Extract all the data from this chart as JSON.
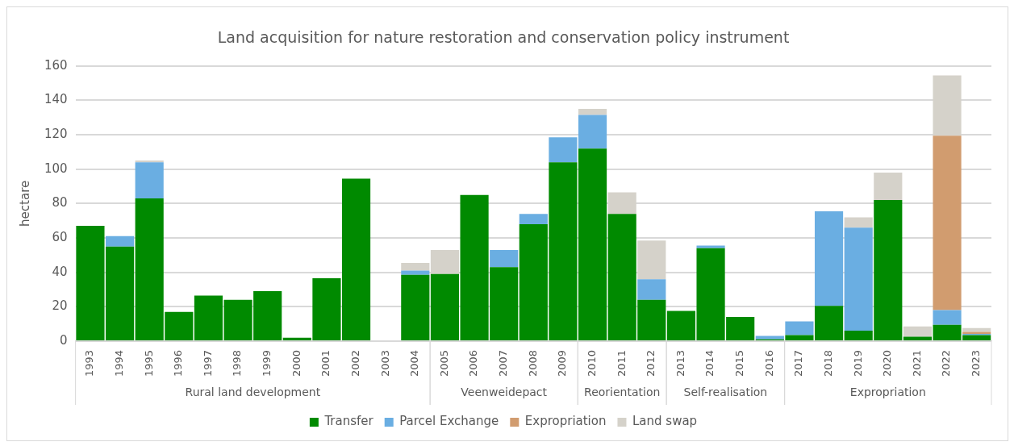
{
  "chart_data": {
    "type": "bar",
    "title": "Land acquisition for nature restoration and conservation policy instrument",
    "ylabel": "hectare",
    "categories": [
      "1993",
      "1994",
      "1995",
      "1996",
      "1997",
      "1998",
      "1999",
      "2000",
      "2001",
      "2002",
      "2003",
      "2004",
      "2005",
      "2006",
      "2007",
      "2008",
      "2009",
      "2010",
      "2011",
      "2012",
      "2013",
      "2014",
      "2015",
      "2016",
      "2017",
      "2018",
      "2019",
      "2020",
      "2021",
      "2022",
      "2023"
    ],
    "stacked": true,
    "series": [
      {
        "name": "Transfer",
        "color": "#008a00",
        "values": [
          67,
          55,
          83,
          17,
          26.5,
          24,
          29,
          2,
          36.5,
          94.5,
          0,
          38.5,
          39,
          85,
          43,
          68,
          104,
          112,
          74,
          24,
          17.5,
          54,
          14,
          1,
          3.5,
          20.5,
          6,
          82,
          2.5,
          9.5,
          3.5
        ]
      },
      {
        "name": "Parcel Exchange",
        "color": "#6aaee2",
        "values": [
          0,
          6,
          21,
          0,
          0,
          0,
          0,
          0,
          0,
          0,
          0,
          2.5,
          0,
          0,
          10,
          6,
          14.5,
          19.5,
          0,
          12,
          0,
          1.5,
          0,
          2,
          8,
          55,
          60,
          0,
          0,
          8.5,
          0.7
        ]
      },
      {
        "name": "Expropriation",
        "color": "#d19c6f",
        "values": [
          0,
          0,
          0,
          0,
          0,
          0,
          0,
          0,
          0,
          0,
          0,
          0,
          0,
          0,
          0,
          0,
          0,
          0,
          0,
          0,
          0,
          0,
          0,
          0,
          0,
          0,
          0,
          0,
          0,
          101.5,
          1.2
        ]
      },
      {
        "name": "Land swap",
        "color": "#d5d2ca",
        "values": [
          0,
          0,
          1,
          0,
          0,
          0,
          0,
          0,
          0,
          0,
          0,
          4.5,
          14,
          0,
          0,
          0,
          0,
          3.5,
          12.5,
          22.5,
          0,
          0,
          0,
          0,
          0,
          0,
          6,
          16,
          6,
          35,
          2.2
        ]
      }
    ],
    "ylim": [
      0,
      160
    ],
    "yticks": [
      0,
      20,
      40,
      60,
      80,
      100,
      120,
      140,
      160
    ],
    "grid": "y",
    "legend": "bottom",
    "annotations": [
      "Rural land development",
      "Veenweidepact",
      "Reorientation",
      "Self-realisation",
      "Expropriation"
    ]
  }
}
